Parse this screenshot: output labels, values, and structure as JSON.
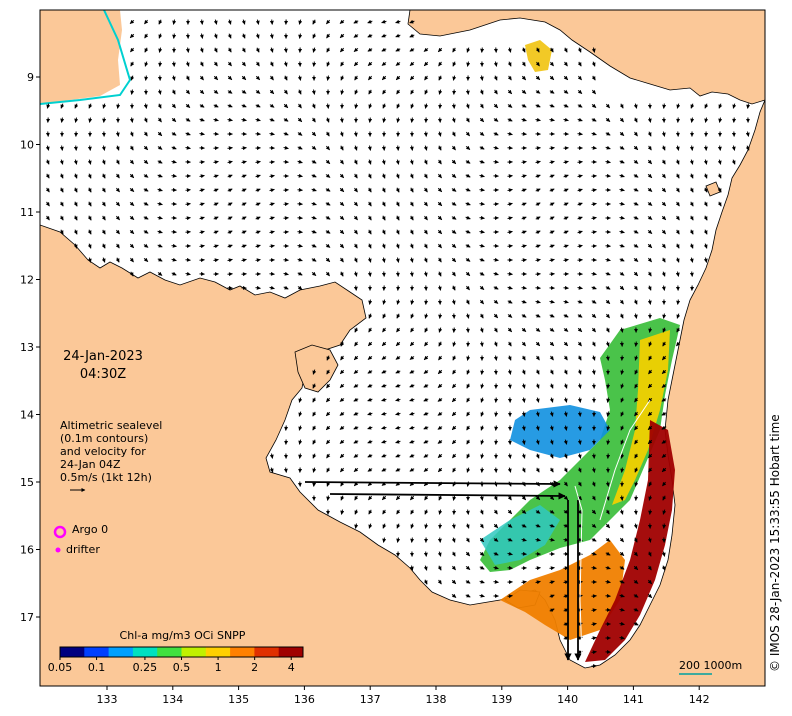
{
  "map": {
    "x_ticks": [
      "133",
      "134",
      "135",
      "136",
      "137",
      "138",
      "139",
      "140",
      "141",
      "142"
    ],
    "y_ticks": [
      "9",
      "10",
      "11",
      "12",
      "13",
      "14",
      "15",
      "16",
      "17"
    ],
    "lon_range": [
      132,
      142.9
    ],
    "lat_range": [
      -8.2,
      -17.7
    ],
    "colors": {
      "land": "#fbc898",
      "sea": "#ffffff",
      "coastline": "#000000",
      "boundary": "#00d0d0",
      "argo": "#ff00ff",
      "drifter": "#ff00ff",
      "scale_line": "#00a0a0"
    }
  },
  "date_label": {
    "date": "24-Jan-2023",
    "time": "04:30Z"
  },
  "altimetry_legend": {
    "lines": [
      "Altimetric sealevel",
      "(0.1m contours)",
      "and velocity for",
      "24-Jan 04Z",
      "0.5m/s (1kt 12h)"
    ]
  },
  "markers": {
    "argo_label": "Argo 0",
    "drifter_label": "drifter"
  },
  "colorbar": {
    "title": "Chl-a mg/m3 OCi SNPP",
    "ticks": [
      "0.05",
      "0.1",
      "0.25",
      "0.5",
      "1",
      "2",
      "4"
    ],
    "tick_values": [
      0.05,
      0.1,
      0.25,
      0.5,
      1,
      2,
      4
    ],
    "range": [
      0.05,
      5
    ],
    "scale": "log",
    "colors": [
      "#000080",
      "#0040ff",
      "#00a0ff",
      "#00e0c0",
      "#40e040",
      "#c0f000",
      "#ffd000",
      "#ff8000",
      "#e03000",
      "#a00000"
    ]
  },
  "scale_bar": {
    "label": "200  1000m"
  },
  "credit": "© IMOS 28-Jan-2023 15:33:55 Hobart time"
}
